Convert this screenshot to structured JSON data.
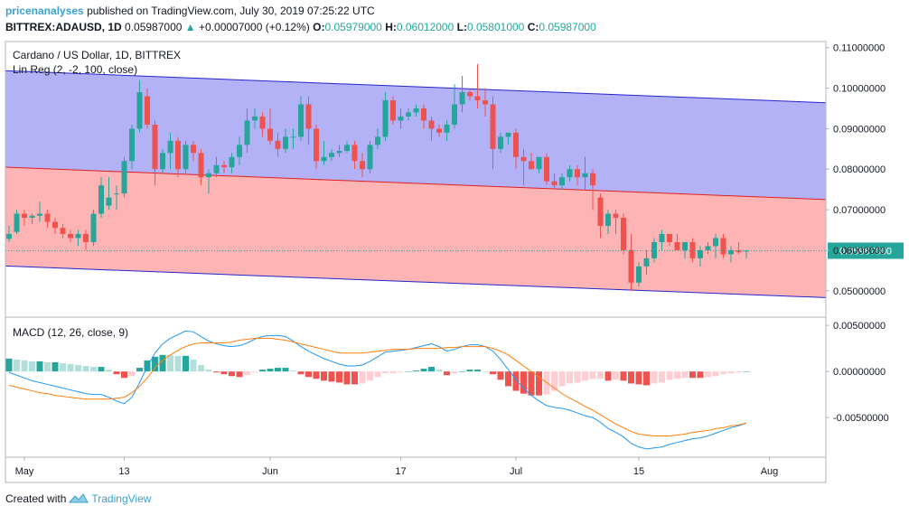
{
  "header": {
    "author": "pricenanalyses",
    "published": "published on TradingView.com, July 30, 2019 07:25:22 UTC",
    "symbol": "BITTREX:ADAUSD, 1D",
    "last_price": "0.05987000",
    "change": "+0.00007000 (+0.12%)",
    "o_label": "O:",
    "o_value": "0.05979000",
    "h_label": "H:",
    "h_value": "0.06012000",
    "l_label": "L:",
    "l_value": "0.05801000",
    "c_label": "C:",
    "c_value": "0.05987000"
  },
  "footer": {
    "created_with": "Created with",
    "brand": "TradingView"
  },
  "colors": {
    "up": "#26a69a",
    "down": "#ef5350",
    "channel_upper_fill": "#b3b2f7",
    "channel_lower_fill": "#fdb4b4",
    "channel_border": "#2424d0",
    "channel_mid": "#e02020",
    "macd_line": "#2196f3",
    "signal_line": "#ff7f0e",
    "price_tag": "#26a69a"
  },
  "chart_data": [
    {
      "type": "candlestick",
      "title": "Cardano / US Dollar, 1D, BITTREX",
      "indicator_label": "Lin Reg (2, -2, 100, close)",
      "x_ticks": [
        "May",
        "13",
        "Jun",
        "17",
        "Jul",
        "15",
        "Aug"
      ],
      "y_ticks": [
        "0.11000000",
        "0.10000000",
        "0.09000000",
        "0.08000000",
        "0.07000000",
        "0.06000000",
        "0.05000000"
      ],
      "ylim": [
        0.0437,
        0.1115
      ],
      "last_price_label": "0.05987000",
      "lin_reg_channel": {
        "upper": [
          0.1043,
          0.0964
        ],
        "mid": [
          0.0805,
          0.0725
        ],
        "lower": [
          0.0561,
          0.0483
        ]
      },
      "candles": [
        [
          0.0628,
          0.066,
          0.062,
          0.064
        ],
        [
          0.0645,
          0.07,
          0.064,
          0.069
        ],
        [
          0.069,
          0.07,
          0.066,
          0.068
        ],
        [
          0.068,
          0.069,
          0.0665,
          0.0685
        ],
        [
          0.0685,
          0.072,
          0.067,
          0.069
        ],
        [
          0.069,
          0.07,
          0.0655,
          0.067
        ],
        [
          0.067,
          0.068,
          0.064,
          0.0655
        ],
        [
          0.0655,
          0.0665,
          0.063,
          0.064
        ],
        [
          0.064,
          0.065,
          0.062,
          0.063
        ],
        [
          0.063,
          0.065,
          0.061,
          0.064
        ],
        [
          0.064,
          0.065,
          0.06,
          0.062
        ],
        [
          0.062,
          0.07,
          0.061,
          0.069
        ],
        [
          0.069,
          0.078,
          0.068,
          0.076
        ],
        [
          0.071,
          0.078,
          0.07,
          0.073
        ],
        [
          0.074,
          0.076,
          0.07,
          0.074
        ],
        [
          0.074,
          0.083,
          0.073,
          0.082
        ],
        [
          0.082,
          0.091,
          0.08,
          0.09
        ],
        [
          0.09,
          0.102,
          0.089,
          0.099
        ],
        [
          0.098,
          0.1,
          0.09,
          0.091
        ],
        [
          0.091,
          0.092,
          0.076,
          0.08
        ],
        [
          0.08,
          0.085,
          0.079,
          0.084
        ],
        [
          0.084,
          0.089,
          0.08,
          0.087
        ],
        [
          0.087,
          0.088,
          0.078,
          0.08
        ],
        [
          0.08,
          0.087,
          0.079,
          0.086
        ],
        [
          0.086,
          0.087,
          0.082,
          0.084
        ],
        [
          0.084,
          0.085,
          0.076,
          0.078
        ],
        [
          0.078,
          0.08,
          0.074,
          0.079
        ],
        [
          0.079,
          0.083,
          0.078,
          0.081
        ],
        [
          0.081,
          0.082,
          0.079,
          0.0805
        ],
        [
          0.0805,
          0.084,
          0.079,
          0.083
        ],
        [
          0.083,
          0.088,
          0.081,
          0.086
        ],
        [
          0.086,
          0.095,
          0.084,
          0.092
        ],
        [
          0.092,
          0.095,
          0.09,
          0.093
        ],
        [
          0.093,
          0.094,
          0.088,
          0.09
        ],
        [
          0.09,
          0.095,
          0.086,
          0.087
        ],
        [
          0.087,
          0.089,
          0.083,
          0.085
        ],
        [
          0.085,
          0.09,
          0.084,
          0.088
        ],
        [
          0.088,
          0.09,
          0.085,
          0.088
        ],
        [
          0.088,
          0.098,
          0.087,
          0.096
        ],
        [
          0.096,
          0.098,
          0.086,
          0.09
        ],
        [
          0.09,
          0.091,
          0.08,
          0.082
        ],
        [
          0.082,
          0.087,
          0.081,
          0.083
        ],
        [
          0.083,
          0.085,
          0.082,
          0.084
        ],
        [
          0.084,
          0.086,
          0.083,
          0.0845
        ],
        [
          0.0845,
          0.087,
          0.084,
          0.086
        ],
        [
          0.086,
          0.087,
          0.08,
          0.082
        ],
        [
          0.082,
          0.084,
          0.078,
          0.08
        ],
        [
          0.08,
          0.087,
          0.079,
          0.086
        ],
        [
          0.086,
          0.09,
          0.085,
          0.088
        ],
        [
          0.088,
          0.099,
          0.087,
          0.097
        ],
        [
          0.097,
          0.098,
          0.091,
          0.092
        ],
        [
          0.092,
          0.095,
          0.09,
          0.093
        ],
        [
          0.093,
          0.095,
          0.092,
          0.094
        ],
        [
          0.094,
          0.096,
          0.093,
          0.095
        ],
        [
          0.095,
          0.096,
          0.09,
          0.092
        ],
        [
          0.092,
          0.093,
          0.087,
          0.09
        ],
        [
          0.09,
          0.091,
          0.088,
          0.089
        ],
        [
          0.089,
          0.092,
          0.087,
          0.091
        ],
        [
          0.091,
          0.101,
          0.09,
          0.096
        ],
        [
          0.096,
          0.103,
          0.094,
          0.099
        ],
        [
          0.099,
          0.1,
          0.097,
          0.098
        ],
        [
          0.098,
          0.106,
          0.095,
          0.097
        ],
        [
          0.097,
          0.1,
          0.093,
          0.096
        ],
        [
          0.096,
          0.098,
          0.08,
          0.085
        ],
        [
          0.085,
          0.089,
          0.084,
          0.088
        ],
        [
          0.088,
          0.089,
          0.086,
          0.089
        ],
        [
          0.089,
          0.09,
          0.08,
          0.083
        ],
        [
          0.083,
          0.085,
          0.076,
          0.082
        ],
        [
          0.082,
          0.084,
          0.08,
          0.08
        ],
        [
          0.08,
          0.083,
          0.079,
          0.083
        ],
        [
          0.083,
          0.084,
          0.076,
          0.077
        ],
        [
          0.077,
          0.079,
          0.075,
          0.076
        ],
        [
          0.076,
          0.079,
          0.075,
          0.078
        ],
        [
          0.078,
          0.081,
          0.077,
          0.08
        ],
        [
          0.08,
          0.081,
          0.076,
          0.078
        ],
        [
          0.078,
          0.083,
          0.075,
          0.079
        ],
        [
          0.079,
          0.08,
          0.07,
          0.076
        ],
        [
          0.073,
          0.074,
          0.063,
          0.066
        ],
        [
          0.066,
          0.07,
          0.064,
          0.069
        ],
        [
          0.069,
          0.07,
          0.064,
          0.068
        ],
        [
          0.068,
          0.069,
          0.059,
          0.06
        ],
        [
          0.06,
          0.064,
          0.05,
          0.052
        ],
        [
          0.052,
          0.057,
          0.051,
          0.056
        ],
        [
          0.056,
          0.06,
          0.054,
          0.058
        ],
        [
          0.058,
          0.063,
          0.057,
          0.062
        ],
        [
          0.062,
          0.065,
          0.06,
          0.064
        ],
        [
          0.064,
          0.064,
          0.061,
          0.062
        ],
        [
          0.062,
          0.064,
          0.06,
          0.06
        ],
        [
          0.06,
          0.062,
          0.058,
          0.062
        ],
        [
          0.062,
          0.063,
          0.057,
          0.058
        ],
        [
          0.058,
          0.061,
          0.056,
          0.06
        ],
        [
          0.06,
          0.062,
          0.059,
          0.061
        ],
        [
          0.061,
          0.064,
          0.058,
          0.063
        ],
        [
          0.063,
          0.064,
          0.058,
          0.059
        ],
        [
          0.059,
          0.061,
          0.057,
          0.06
        ],
        [
          0.06,
          0.062,
          0.059,
          0.0595
        ],
        [
          0.05979,
          0.06012,
          0.05801,
          0.05987
        ]
      ]
    },
    {
      "type": "macd",
      "title": "MACD (12, 26, close, 9)",
      "y_ticks": [
        "0.00500000",
        "0.00000000",
        "-0.00500000"
      ],
      "ylim": [
        -0.0093,
        0.0058
      ],
      "macd": [
        -0.0001,
        -0.0004,
        -0.0007,
        -0.001,
        -0.0012,
        -0.0014,
        -0.0016,
        -0.0018,
        -0.002,
        -0.0022,
        -0.0024,
        -0.0025,
        -0.0025,
        -0.0028,
        -0.0032,
        -0.0035,
        -0.0028,
        -0.0012,
        0.0005,
        0.002,
        0.003,
        0.0036,
        0.004,
        0.0044,
        0.0043,
        0.0038,
        0.0033,
        0.003,
        0.0028,
        0.0027,
        0.0028,
        0.0031,
        0.0035,
        0.0038,
        0.0039,
        0.0039,
        0.0038,
        0.0033,
        0.0027,
        0.0022,
        0.0018,
        0.0014,
        0.0011,
        0.0008,
        0.0006,
        0.0006,
        0.0007,
        0.0011,
        0.0016,
        0.0021,
        0.0022,
        0.0023,
        0.0024,
        0.0026,
        0.0028,
        0.003,
        0.0027,
        0.0022,
        0.0024,
        0.0027,
        0.0029,
        0.0029,
        0.0027,
        0.0022,
        0.0013,
        0.0002,
        -0.0009,
        -0.0018,
        -0.0026,
        -0.0032,
        -0.0037,
        -0.0039,
        -0.004,
        -0.0042,
        -0.0045,
        -0.0048,
        -0.005,
        -0.0055,
        -0.0062,
        -0.0066,
        -0.0071,
        -0.0078,
        -0.0082,
        -0.0084,
        -0.0083,
        -0.0082,
        -0.0079,
        -0.0077,
        -0.0075,
        -0.0073,
        -0.0072,
        -0.007,
        -0.0067,
        -0.0064,
        -0.0061,
        -0.0059,
        -0.0056
      ],
      "signal": [
        -0.0015,
        -0.0017,
        -0.0019,
        -0.0021,
        -0.0023,
        -0.0024,
        -0.0026,
        -0.0027,
        -0.0028,
        -0.0029,
        -0.003,
        -0.003,
        -0.003,
        -0.003,
        -0.0029,
        -0.0028,
        -0.0023,
        -0.0016,
        -0.0007,
        0.0004,
        0.0012,
        0.0018,
        0.0023,
        0.0027,
        0.003,
        0.0031,
        0.0031,
        0.0031,
        0.0031,
        0.0032,
        0.0034,
        0.0035,
        0.0036,
        0.0036,
        0.0036,
        0.0035,
        0.0034,
        0.0032,
        0.003,
        0.0028,
        0.0026,
        0.0024,
        0.0022,
        0.002,
        0.002,
        0.002,
        0.002,
        0.0021,
        0.0022,
        0.0023,
        0.0024,
        0.0024,
        0.0024,
        0.0025,
        0.0025,
        0.0025,
        0.0025,
        0.0026,
        0.0026,
        0.0027,
        0.0027,
        0.0027,
        0.0027,
        0.0025,
        0.0022,
        0.0018,
        0.0012,
        0.0006,
        0.0,
        -0.0006,
        -0.0012,
        -0.0018,
        -0.0024,
        -0.0029,
        -0.0033,
        -0.0038,
        -0.0042,
        -0.0047,
        -0.0052,
        -0.0057,
        -0.0061,
        -0.0065,
        -0.0068,
        -0.0069,
        -0.007,
        -0.007,
        -0.007,
        -0.0069,
        -0.0068,
        -0.0066,
        -0.0065,
        -0.0064,
        -0.0062,
        -0.0061,
        -0.0059,
        -0.0058,
        -0.0056
      ]
    }
  ]
}
